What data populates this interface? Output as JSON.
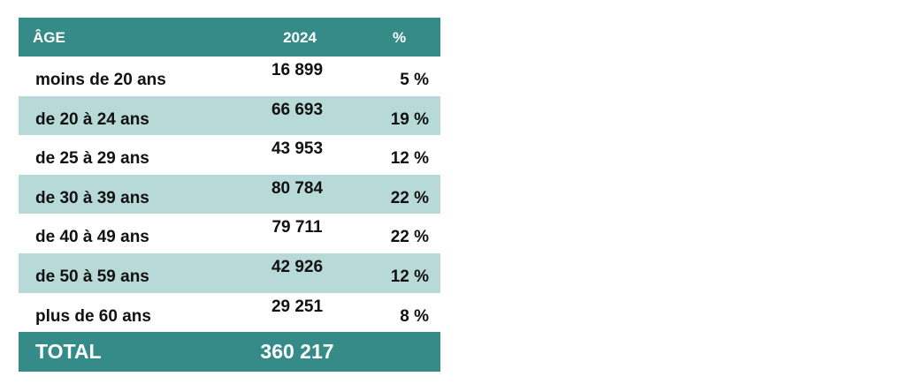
{
  "table": {
    "header": [
      "ÂGE",
      "2024",
      "%"
    ],
    "rows": [
      [
        "moins de 20 ans",
        "16 899",
        "5 %"
      ],
      [
        "de 20 à 24 ans",
        "66 693",
        "19 %"
      ],
      [
        "de 25 à 29 ans",
        "43 953",
        "12 %"
      ],
      [
        "de 30 à 39 ans",
        "80 784",
        "22 %"
      ],
      [
        "de 40 à 49 ans",
        "79 711",
        "22 %"
      ],
      [
        "de 50 à 59 ans",
        "42 926",
        "12 %"
      ],
      [
        "plus de 60 ans",
        "29 251",
        "8 %"
      ]
    ],
    "total": [
      "TOTAL",
      "360 217"
    ]
  }
}
